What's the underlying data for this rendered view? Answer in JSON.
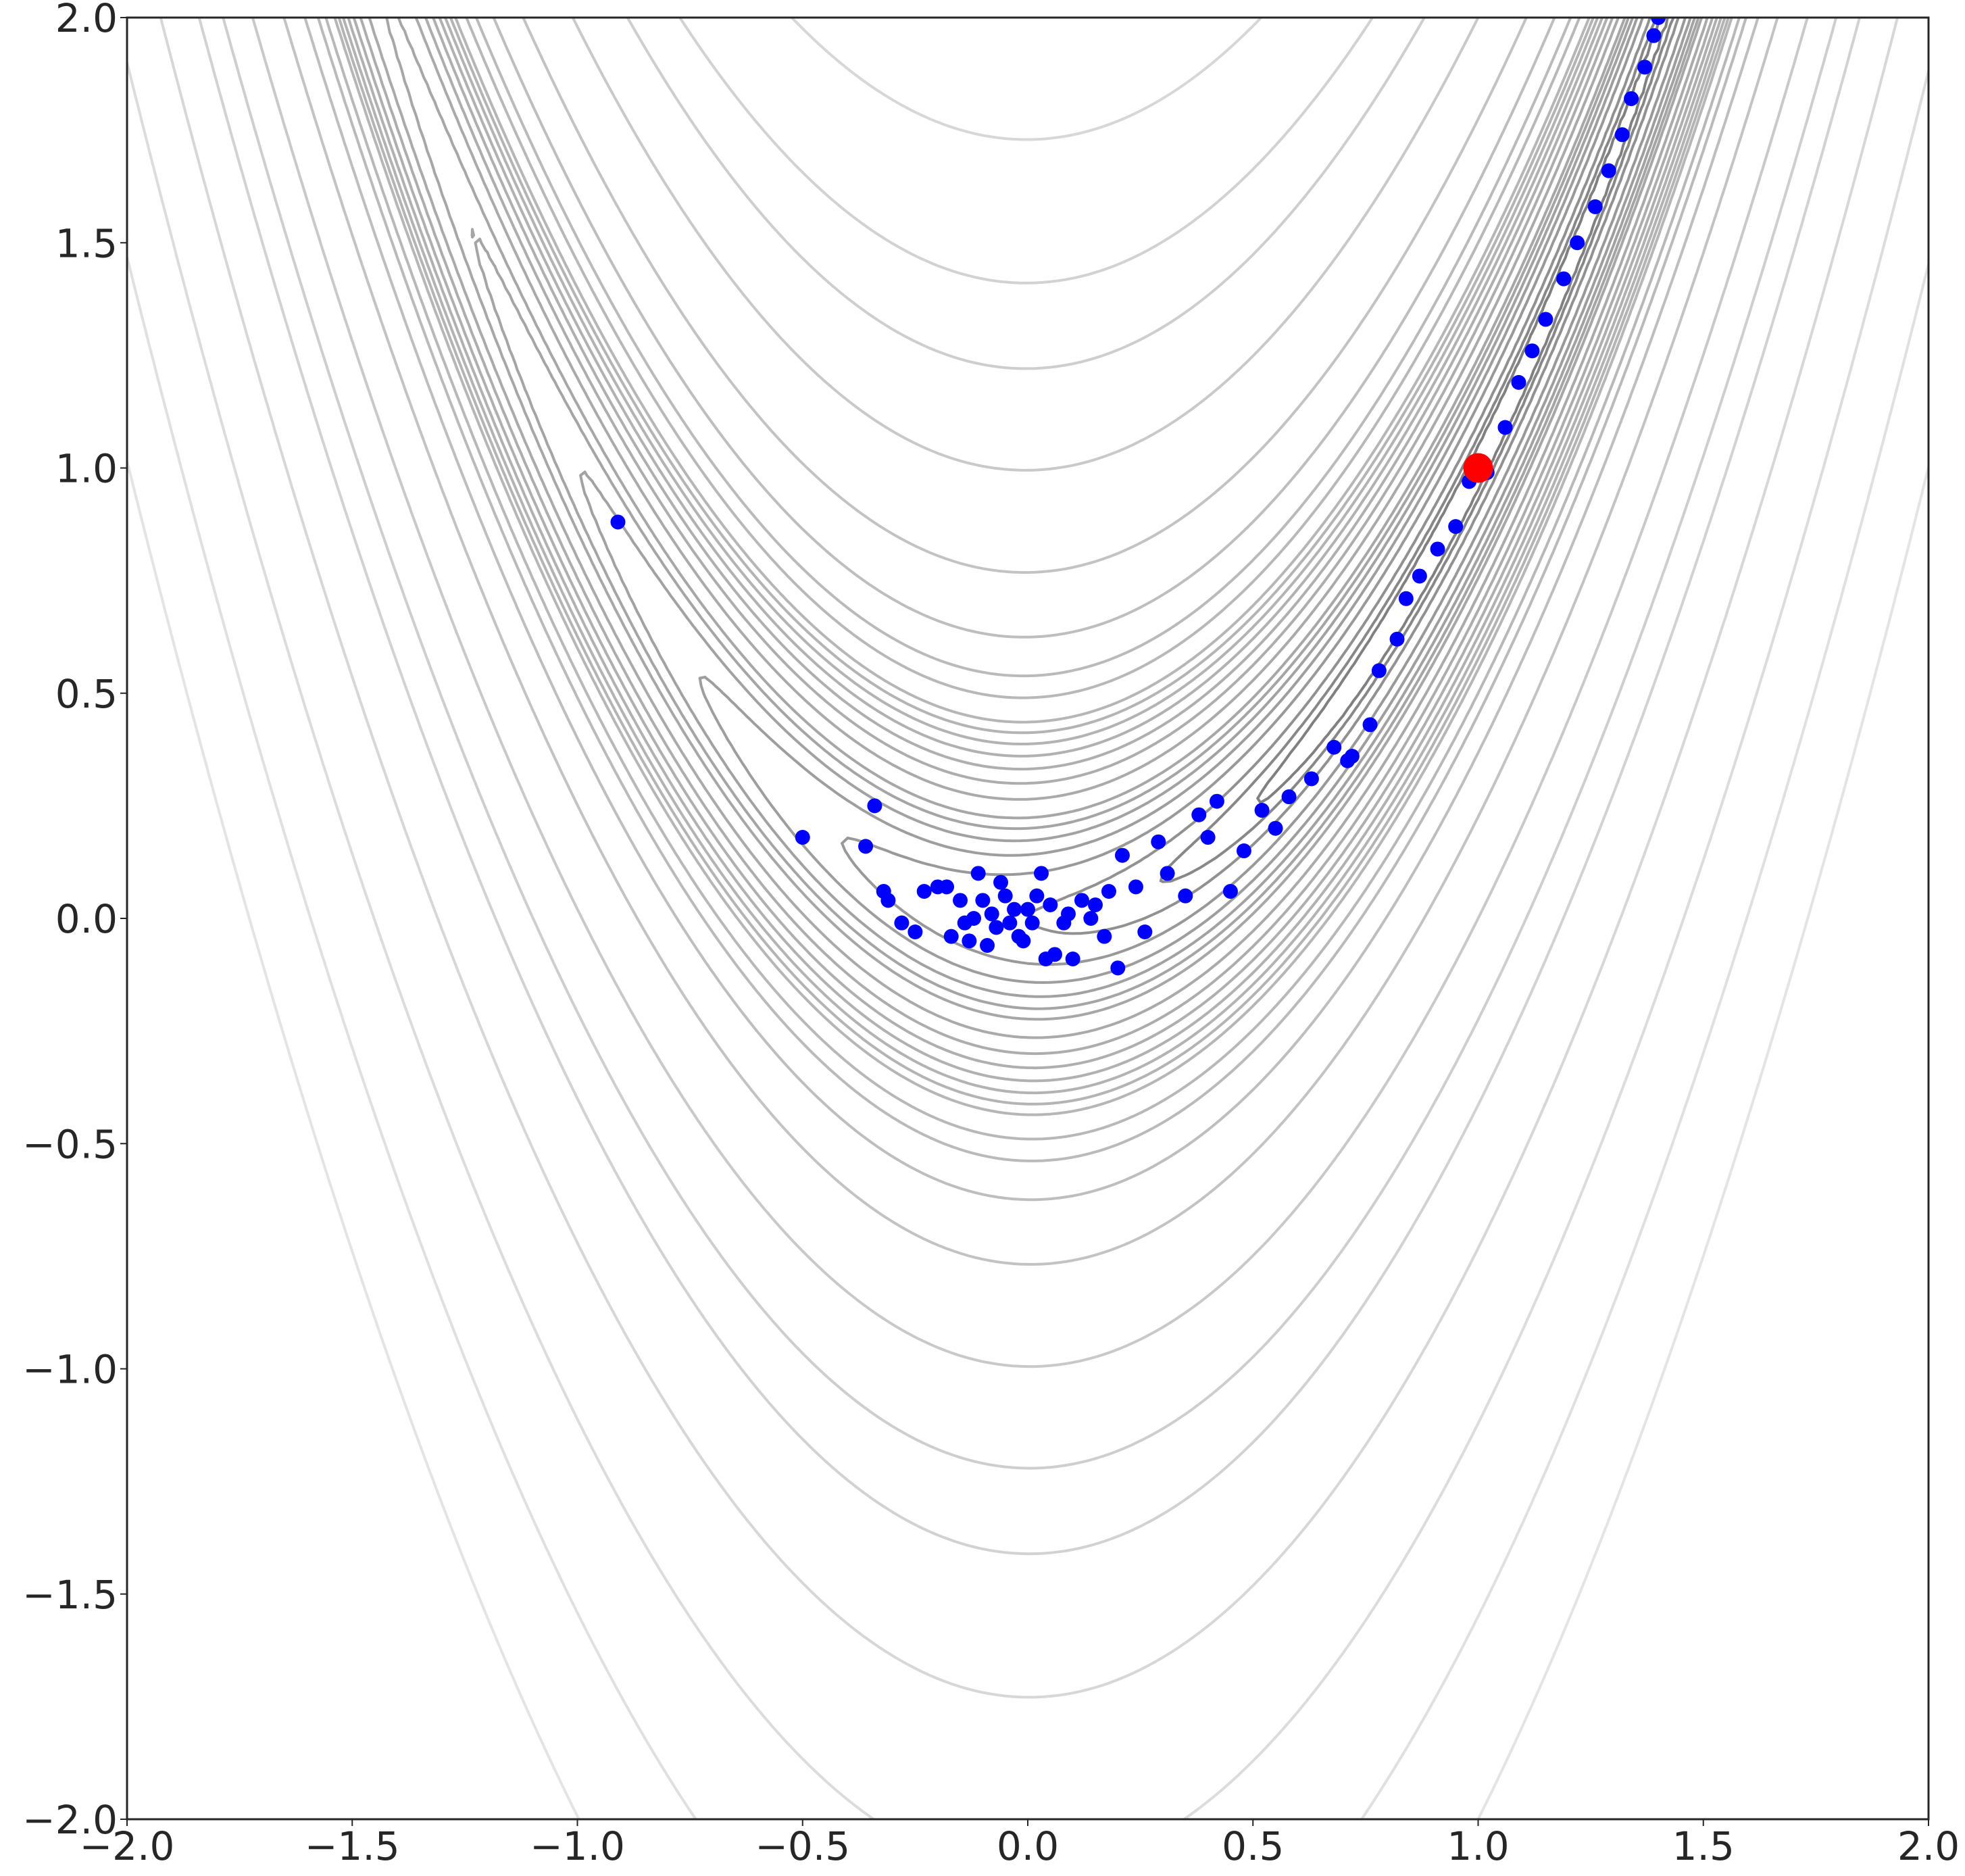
{
  "chart_data": {
    "type": "scatter",
    "title": "",
    "xlabel": "",
    "ylabel": "",
    "xlim": [
      -2.0,
      2.0
    ],
    "ylim": [
      -2.0,
      2.0
    ],
    "grid": false,
    "legend": "none",
    "x_ticks": [
      {
        "value": -2.0,
        "label": "−2.0"
      },
      {
        "value": -1.5,
        "label": "−1.5"
      },
      {
        "value": -1.0,
        "label": "−1.0"
      },
      {
        "value": -0.5,
        "label": "−0.5"
      },
      {
        "value": 0.0,
        "label": "0.0"
      },
      {
        "value": 0.5,
        "label": "0.5"
      },
      {
        "value": 1.0,
        "label": "1.0"
      },
      {
        "value": 1.5,
        "label": "1.5"
      },
      {
        "value": 2.0,
        "label": "2.0"
      }
    ],
    "y_ticks": [
      {
        "value": -2.0,
        "label": "−2.0"
      },
      {
        "value": -1.5,
        "label": "−1.5"
      },
      {
        "value": -1.0,
        "label": "−1.0"
      },
      {
        "value": -0.5,
        "label": "−0.5"
      },
      {
        "value": 0.0,
        "label": "0.0"
      },
      {
        "value": 0.5,
        "label": "0.5"
      },
      {
        "value": 1.0,
        "label": "1.0"
      },
      {
        "value": 1.5,
        "label": "1.5"
      },
      {
        "value": 2.0,
        "label": "2.0"
      }
    ],
    "contour": {
      "function": "(1 - x)^2 + 100 (y - x^2)^2",
      "levels": [
        0.25,
        0.5,
        1,
        2,
        3,
        4,
        5,
        6,
        8,
        10,
        12,
        14,
        16,
        18,
        20,
        25,
        30,
        40,
        60,
        100,
        150,
        200,
        300,
        450,
        650,
        900
      ],
      "color": "#808080"
    },
    "series": [
      {
        "marker": "circle",
        "color": "#0000ff",
        "points": [
          [
            -0.91,
            0.88
          ],
          [
            -0.34,
            0.25
          ],
          [
            -0.5,
            0.18
          ],
          [
            -0.36,
            0.16
          ],
          [
            -0.32,
            0.06
          ],
          [
            -0.31,
            0.04
          ],
          [
            -0.28,
            -0.01
          ],
          [
            -0.25,
            -0.03
          ],
          [
            -0.23,
            0.06
          ],
          [
            -0.2,
            0.07
          ],
          [
            -0.18,
            0.07
          ],
          [
            -0.17,
            -0.04
          ],
          [
            -0.15,
            0.04
          ],
          [
            -0.14,
            -0.01
          ],
          [
            -0.13,
            -0.05
          ],
          [
            -0.12,
            0.0
          ],
          [
            -0.11,
            0.1
          ],
          [
            -0.1,
            0.04
          ],
          [
            -0.09,
            -0.06
          ],
          [
            -0.08,
            0.01
          ],
          [
            -0.07,
            -0.02
          ],
          [
            -0.06,
            0.08
          ],
          [
            -0.05,
            0.05
          ],
          [
            -0.04,
            -0.01
          ],
          [
            -0.03,
            0.02
          ],
          [
            -0.02,
            -0.04
          ],
          [
            -0.01,
            -0.05
          ],
          [
            0.0,
            0.02
          ],
          [
            0.01,
            -0.01
          ],
          [
            0.02,
            0.05
          ],
          [
            0.03,
            0.1
          ],
          [
            0.04,
            -0.09
          ],
          [
            0.05,
            0.03
          ],
          [
            0.06,
            -0.08
          ],
          [
            0.08,
            -0.01
          ],
          [
            0.09,
            0.01
          ],
          [
            0.1,
            -0.09
          ],
          [
            0.12,
            0.04
          ],
          [
            0.14,
            0.0
          ],
          [
            0.15,
            0.03
          ],
          [
            0.17,
            -0.04
          ],
          [
            0.18,
            0.06
          ],
          [
            0.2,
            -0.11
          ],
          [
            0.21,
            0.14
          ],
          [
            0.24,
            0.07
          ],
          [
            0.26,
            -0.03
          ],
          [
            0.29,
            0.17
          ],
          [
            0.31,
            0.1
          ],
          [
            0.35,
            0.05
          ],
          [
            0.38,
            0.23
          ],
          [
            0.4,
            0.18
          ],
          [
            0.42,
            0.26
          ],
          [
            0.45,
            0.06
          ],
          [
            0.48,
            0.15
          ],
          [
            0.52,
            0.24
          ],
          [
            0.55,
            0.2
          ],
          [
            0.58,
            0.27
          ],
          [
            0.63,
            0.31
          ],
          [
            0.68,
            0.38
          ],
          [
            0.72,
            0.36
          ],
          [
            0.71,
            0.35
          ],
          [
            0.76,
            0.43
          ],
          [
            0.78,
            0.55
          ],
          [
            0.82,
            0.62
          ],
          [
            0.84,
            0.71
          ],
          [
            0.87,
            0.76
          ],
          [
            0.91,
            0.82
          ],
          [
            0.95,
            0.87
          ],
          [
            0.98,
            0.97
          ],
          [
            1.02,
            0.99
          ],
          [
            1.06,
            1.09
          ],
          [
            1.09,
            1.19
          ],
          [
            1.12,
            1.26
          ],
          [
            1.15,
            1.33
          ],
          [
            1.19,
            1.42
          ],
          [
            1.22,
            1.5
          ],
          [
            1.26,
            1.58
          ],
          [
            1.29,
            1.66
          ],
          [
            1.32,
            1.74
          ],
          [
            1.34,
            1.82
          ],
          [
            1.37,
            1.89
          ],
          [
            1.39,
            1.96
          ],
          [
            1.4,
            2.0
          ]
        ]
      },
      {
        "marker": "circle",
        "color": "#ff0000",
        "points": [
          [
            1.0,
            1.0
          ]
        ]
      }
    ]
  }
}
